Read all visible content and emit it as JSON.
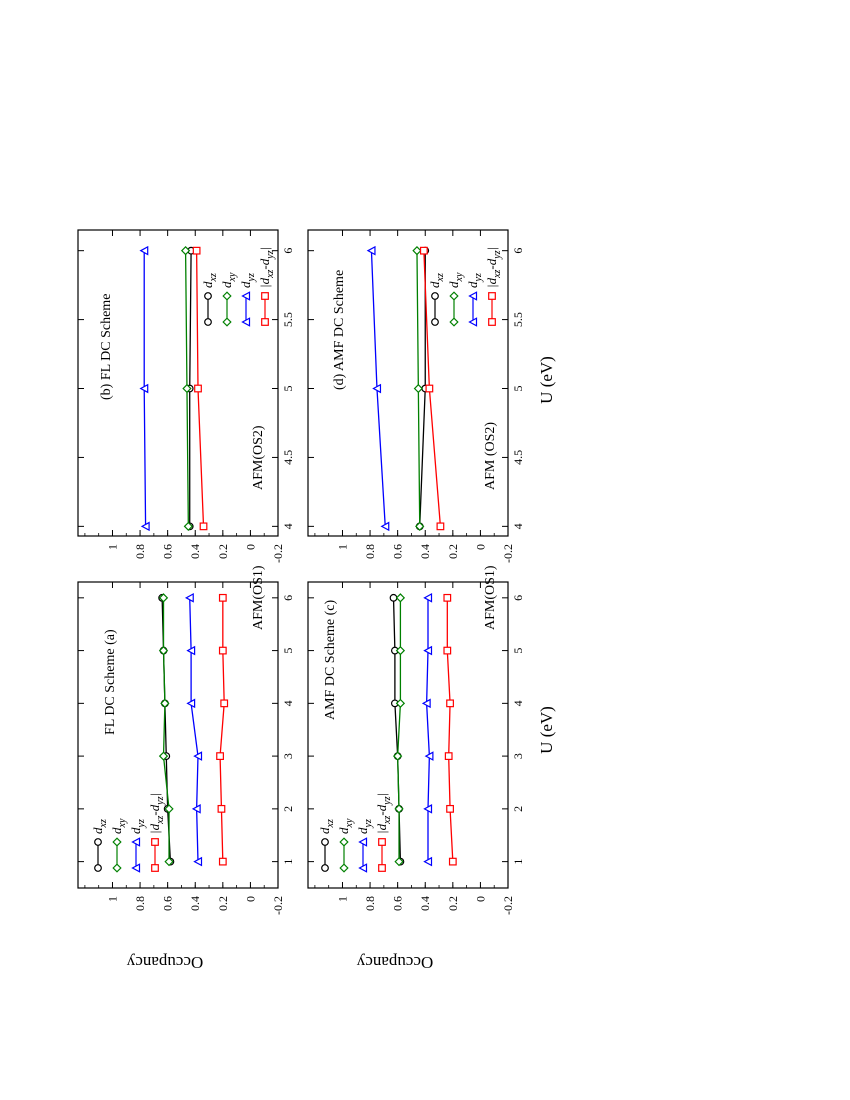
{
  "figure": {
    "xlabel": "U (eV)",
    "ylabel": "Occupancy",
    "legend_labels": {
      "dxz": "d",
      "dxz_sub": "xz",
      "dxy": "d",
      "dxy_sub": "xy",
      "dyz": "d",
      "dyz_sub": "yz",
      "diff_a": "|d",
      "diff_sub1": "xz",
      "diff_mid": "-d",
      "diff_sub2": "yz",
      "diff_b": "|"
    }
  },
  "chart_data": [
    {
      "id": "a",
      "type": "line",
      "title": "FL DC Scheme  (a)",
      "annotation": "AFM(OS1)",
      "xlabel": "U (eV)",
      "ylabel": "Occupancy",
      "xlim": [
        0.5,
        6.3
      ],
      "ylim": [
        -0.2,
        1.25
      ],
      "xticks": [
        1,
        2,
        3,
        4,
        5,
        6
      ],
      "yticks": [
        -0.2,
        0,
        0.2,
        0.4,
        0.6,
        0.8,
        1
      ],
      "x": [
        1,
        2,
        3,
        4,
        5,
        6
      ],
      "series": [
        {
          "name": "dxz",
          "color": "#000000",
          "marker": "circle",
          "values": [
            0.58,
            0.6,
            0.61,
            0.62,
            0.63,
            0.64
          ]
        },
        {
          "name": "dxy",
          "color": "#008000",
          "marker": "diamond",
          "values": [
            0.59,
            0.59,
            0.63,
            0.62,
            0.63,
            0.63
          ]
        },
        {
          "name": "dyz",
          "color": "#0000ff",
          "marker": "triangle",
          "values": [
            0.38,
            0.39,
            0.38,
            0.43,
            0.43,
            0.44
          ]
        },
        {
          "name": "|dxz-dyz|",
          "color": "#ff0000",
          "marker": "square",
          "values": [
            0.2,
            0.21,
            0.22,
            0.19,
            0.2,
            0.2
          ]
        }
      ],
      "legend": "top-left",
      "grid": false
    },
    {
      "id": "b",
      "type": "line",
      "title": "(b) FL DC Scheme",
      "annotation": "AFM(OS2)",
      "xlabel": "U (eV)",
      "ylabel": "Occupancy",
      "xlim": [
        3.93,
        6.15
      ],
      "ylim": [
        -0.2,
        1.25
      ],
      "xticks": [
        4,
        4.5,
        5,
        5.5,
        6
      ],
      "yticks": [
        -0.2,
        0,
        0.2,
        0.4,
        0.6,
        0.8,
        1
      ],
      "x": [
        4,
        5,
        6
      ],
      "series": [
        {
          "name": "dxz",
          "color": "#000000",
          "marker": "circle",
          "values": [
            0.44,
            0.44,
            0.43
          ]
        },
        {
          "name": "dxy",
          "color": "#008000",
          "marker": "diamond",
          "values": [
            0.45,
            0.46,
            0.47
          ]
        },
        {
          "name": "dyz",
          "color": "#0000ff",
          "marker": "triangle",
          "values": [
            0.76,
            0.77,
            0.77
          ]
        },
        {
          "name": "|dxz-dyz|",
          "color": "#ff0000",
          "marker": "square",
          "values": [
            0.34,
            0.38,
            0.39
          ]
        }
      ],
      "legend": "bottom-right",
      "grid": false
    },
    {
      "id": "c",
      "type": "line",
      "title": "AMF DC Scheme    (c)",
      "annotation": "AFM(OS1)",
      "xlabel": "U (eV)",
      "ylabel": "Occupancy",
      "xlim": [
        0.5,
        6.3
      ],
      "ylim": [
        -0.2,
        1.25
      ],
      "xticks": [
        1,
        2,
        3,
        4,
        5,
        6
      ],
      "yticks": [
        -0.2,
        0,
        0.2,
        0.4,
        0.6,
        0.8,
        1
      ],
      "x": [
        1,
        2,
        3,
        4,
        5,
        6
      ],
      "series": [
        {
          "name": "dxz",
          "color": "#000000",
          "marker": "circle",
          "values": [
            0.58,
            0.59,
            0.6,
            0.62,
            0.62,
            0.63
          ]
        },
        {
          "name": "dxy",
          "color": "#008000",
          "marker": "diamond",
          "values": [
            0.59,
            0.59,
            0.6,
            0.58,
            0.58,
            0.58
          ]
        },
        {
          "name": "dyz",
          "color": "#0000ff",
          "marker": "triangle",
          "values": [
            0.38,
            0.38,
            0.37,
            0.39,
            0.38,
            0.38
          ]
        },
        {
          "name": "|dxz-dyz|",
          "color": "#ff0000",
          "marker": "square",
          "values": [
            0.2,
            0.22,
            0.23,
            0.22,
            0.24,
            0.24
          ]
        }
      ],
      "legend": "top-left",
      "grid": false
    },
    {
      "id": "d",
      "type": "line",
      "title": "(d) AMF DC Scheme",
      "annotation": "AFM (OS2)",
      "xlabel": "U (eV)",
      "ylabel": "Occupancy",
      "xlim": [
        3.93,
        6.15
      ],
      "ylim": [
        -0.2,
        1.25
      ],
      "xticks": [
        4,
        4.5,
        5,
        5.5,
        6
      ],
      "yticks": [
        -0.2,
        0,
        0.2,
        0.4,
        0.6,
        0.8,
        1
      ],
      "x": [
        4,
        5,
        6
      ],
      "series": [
        {
          "name": "dxz",
          "color": "#000000",
          "marker": "circle",
          "values": [
            0.44,
            0.4,
            0.4
          ]
        },
        {
          "name": "dxy",
          "color": "#008000",
          "marker": "diamond",
          "values": [
            0.44,
            0.45,
            0.46
          ]
        },
        {
          "name": "dyz",
          "color": "#0000ff",
          "marker": "triangle",
          "values": [
            0.69,
            0.75,
            0.79
          ]
        },
        {
          "name": "|dxz-dyz|",
          "color": "#ff0000",
          "marker": "square",
          "values": [
            0.29,
            0.37,
            0.41
          ]
        }
      ],
      "legend": "bottom-right",
      "grid": false
    }
  ]
}
